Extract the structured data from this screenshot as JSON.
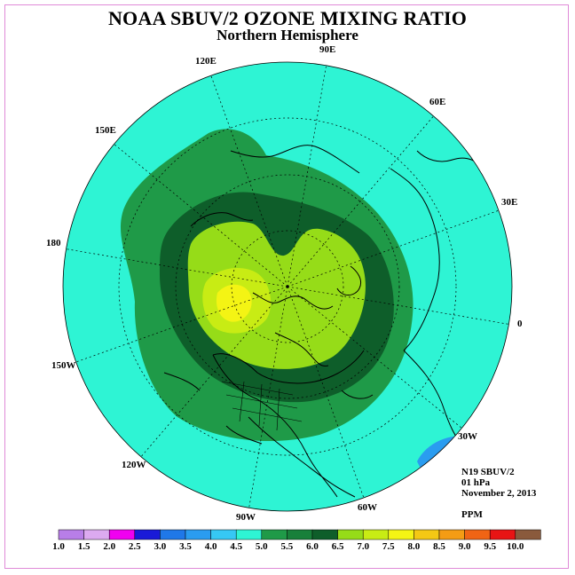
{
  "title": "NOAA SBUV/2 OZONE MIXING RATIO",
  "subtitle": "Northern Hemisphere",
  "longitude_labels": {
    "e90": "90E",
    "e60": "60E",
    "e30": "30E",
    "zero": "0",
    "w30": "30W",
    "w60": "60W",
    "w90": "90W",
    "w120": "120W",
    "w150": "150W",
    "d180": "180",
    "e150": "150E",
    "e120": "120E"
  },
  "info": {
    "satellite": "N19 SBUV/2",
    "pressure": "01 hPa",
    "date": "November 2, 2013",
    "units": "PPM"
  },
  "colorbar": {
    "ticks": [
      "1.0",
      "1.5",
      "2.0",
      "2.5",
      "3.0",
      "3.5",
      "4.0",
      "4.5",
      "5.0",
      "5.5",
      "6.0",
      "6.5",
      "7.0",
      "7.5",
      "8.0",
      "8.5",
      "9.0",
      "9.5",
      "10.0"
    ],
    "colors": [
      "#b87ee8",
      "#dcaaf0",
      "#f000f0",
      "#1a1ad8",
      "#1f78e8",
      "#2a9cf0",
      "#36c8f4",
      "#2ef4d4",
      "#1f9a48",
      "#18803a",
      "#0e5e2a",
      "#96dc18",
      "#c8ec14",
      "#f4f414",
      "#f4c814",
      "#f49c14",
      "#f06414",
      "#e81414",
      "#8a5a3c"
    ]
  }
}
